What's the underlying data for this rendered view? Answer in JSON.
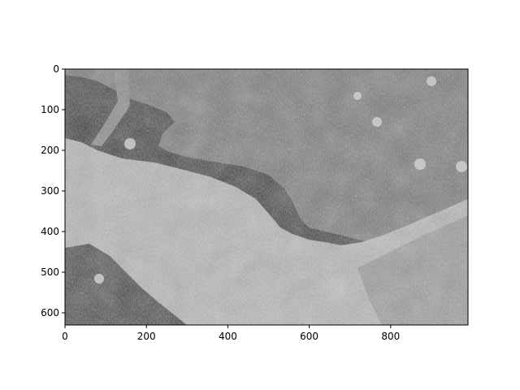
{
  "chart_data": {
    "type": "heatmap",
    "title": "",
    "xlabel": "",
    "ylabel": "",
    "colormap": "gray",
    "image_size": {
      "width": 990,
      "height": 630
    },
    "xlim": [
      0,
      990
    ],
    "ylim": [
      630,
      0
    ],
    "y_axis_inverted": true,
    "x_ticks": [
      0,
      200,
      400,
      600,
      800
    ],
    "y_ticks": [
      0,
      100,
      200,
      300,
      400,
      500,
      600
    ],
    "x_tick_labels": [
      "0",
      "200",
      "400",
      "600",
      "800"
    ],
    "y_tick_labels": [
      "0",
      "100",
      "200",
      "300",
      "400",
      "500",
      "600"
    ],
    "grid": false,
    "legend": "none",
    "colors": {
      "dark_background": "#3a3a3a",
      "mid_texture": "#7e7e7e",
      "bright_texture": "#bdbdbd",
      "axis": "#000000"
    }
  }
}
